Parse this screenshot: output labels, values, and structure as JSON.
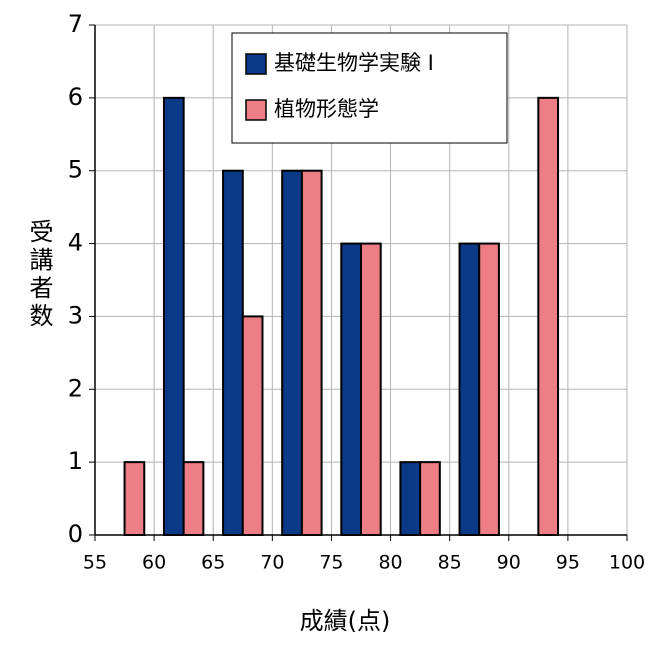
{
  "chart_data": {
    "type": "bar",
    "x": [
      57.5,
      62.5,
      67.5,
      72.5,
      77.5,
      82.5,
      87.5,
      92.5
    ],
    "series": [
      {
        "name": "基礎生物学実験 I",
        "color": "#0a3a88",
        "values": [
          0,
          6,
          5,
          5,
          4,
          1,
          4,
          0
        ]
      },
      {
        "name": "植物形態学",
        "color": "#ee7e86",
        "values": [
          1,
          1,
          3,
          5,
          4,
          1,
          4,
          6
        ]
      }
    ],
    "xlabel": "成績(点)",
    "ylabel": "受講者数",
    "xlim": [
      55,
      100
    ],
    "xticks": [
      55,
      60,
      65,
      70,
      75,
      80,
      85,
      90,
      95,
      100
    ],
    "ylim": [
      0,
      7
    ],
    "yticks": [
      0,
      1,
      2,
      3,
      4,
      5,
      6,
      7
    ],
    "grid": true,
    "legend": "top"
  }
}
